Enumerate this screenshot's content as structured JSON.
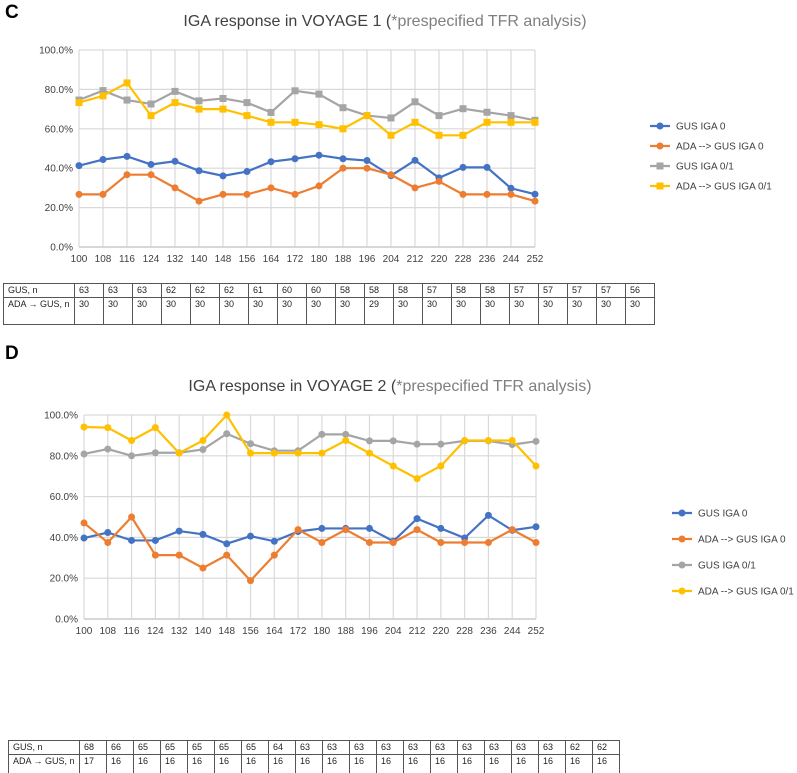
{
  "chart_data": [
    {
      "panel": "C",
      "type": "line",
      "title_main": "IGA response in VOYAGE 1 (",
      "title_note": "*prespecified TFR analysis)",
      "x": [
        100,
        108,
        116,
        124,
        132,
        140,
        148,
        156,
        164,
        172,
        180,
        188,
        196,
        204,
        212,
        220,
        228,
        236,
        244,
        252
      ],
      "ylim": [
        0,
        100
      ],
      "yticks": [
        "0.0%",
        "20.0%",
        "40.0%",
        "60.0%",
        "80.0%",
        "100.0%"
      ],
      "grid": true,
      "legend": "right",
      "series": [
        {
          "name": "GUS IGA 0",
          "color": "#4472C4",
          "marker": "circle",
          "values": [
            41.3,
            44.4,
            46.0,
            41.9,
            43.5,
            38.7,
            36.1,
            38.3,
            43.3,
            44.8,
            46.6,
            44.8,
            43.9,
            36.2,
            44.0,
            35.1,
            40.4,
            40.4,
            29.8,
            26.8
          ]
        },
        {
          "name": "ADA --> GUS IGA 0",
          "color": "#ED7D31",
          "marker": "circle",
          "values": [
            26.7,
            26.7,
            36.7,
            36.7,
            30.0,
            23.3,
            26.7,
            26.7,
            30.0,
            26.7,
            31.0,
            40.0,
            40.0,
            36.7,
            30.0,
            33.3,
            26.7,
            26.7,
            26.7,
            23.3
          ]
        },
        {
          "name": "GUS IGA 0/1",
          "color": "#A5A5A5",
          "marker": "square",
          "values": [
            74.6,
            79.4,
            74.6,
            72.6,
            79.0,
            74.2,
            75.4,
            73.3,
            68.3,
            79.3,
            77.6,
            70.7,
            66.7,
            65.5,
            73.7,
            66.7,
            70.2,
            68.4,
            66.7,
            64.3
          ]
        },
        {
          "name": "ADA --> GUS IGA 0/1",
          "color": "#FFC000",
          "marker": "square",
          "values": [
            73.3,
            76.7,
            83.3,
            66.7,
            73.3,
            70.0,
            70.0,
            66.7,
            63.3,
            63.3,
            62.1,
            60.0,
            66.7,
            56.7,
            63.3,
            56.7,
            56.7,
            63.3,
            63.3,
            63.3
          ]
        }
      ],
      "table": {
        "row1_label": "GUS, n",
        "row1": [
          63,
          63,
          63,
          62,
          62,
          62,
          61,
          60,
          60,
          58,
          58,
          58,
          57,
          58,
          58,
          57,
          57,
          57,
          57,
          56
        ],
        "row2_label": "ADA → GUS, n",
        "row2": [
          30,
          30,
          30,
          30,
          30,
          30,
          30,
          30,
          30,
          30,
          29,
          30,
          30,
          30,
          30,
          30,
          30,
          30,
          30,
          30
        ]
      }
    },
    {
      "panel": "D",
      "type": "line",
      "title_main": "IGA response in VOYAGE 2 (",
      "title_note": "*prespecified TFR analysis)",
      "x": [
        100,
        108,
        116,
        124,
        132,
        140,
        148,
        156,
        164,
        172,
        180,
        188,
        196,
        204,
        212,
        220,
        228,
        236,
        244,
        252
      ],
      "ylim": [
        0,
        100
      ],
      "yticks": [
        "0.0%",
        "20.0%",
        "40.0%",
        "60.0%",
        "80.0%",
        "100.0%"
      ],
      "grid": true,
      "legend": "right",
      "series": [
        {
          "name": "GUS IGA 0",
          "color": "#4472C4",
          "marker": "circle",
          "values": [
            39.7,
            42.4,
            38.5,
            38.5,
            43.1,
            41.5,
            36.9,
            40.6,
            38.1,
            42.9,
            44.4,
            44.4,
            44.4,
            38.1,
            49.2,
            44.4,
            39.7,
            50.8,
            43.5,
            45.2
          ]
        },
        {
          "name": "ADA --> GUS IGA 0",
          "color": "#ED7D31",
          "marker": "circle",
          "values": [
            47.1,
            37.5,
            50.0,
            31.3,
            31.3,
            25.0,
            31.3,
            18.8,
            31.3,
            43.8,
            37.5,
            43.8,
            37.5,
            37.5,
            43.8,
            37.5,
            37.5,
            37.5,
            43.8,
            37.5
          ]
        },
        {
          "name": "GUS IGA 0/1",
          "color": "#A5A5A5",
          "marker": "circle",
          "values": [
            80.9,
            83.3,
            80.0,
            81.5,
            81.5,
            83.1,
            90.8,
            85.9,
            82.5,
            82.5,
            90.5,
            90.5,
            87.3,
            87.3,
            85.7,
            85.7,
            87.3,
            87.3,
            85.5,
            87.1
          ]
        },
        {
          "name": "ADA --> GUS IGA 0/1",
          "color": "#FFC000",
          "marker": "circle",
          "values": [
            94.1,
            93.8,
            87.5,
            93.8,
            81.3,
            87.5,
            100.0,
            81.3,
            81.3,
            81.3,
            81.3,
            87.5,
            81.3,
            75.0,
            68.8,
            75.0,
            87.5,
            87.5,
            87.5,
            75.0
          ]
        }
      ],
      "table": {
        "row1_label": "GUS, n",
        "row1": [
          68,
          66,
          65,
          65,
          65,
          65,
          65,
          64,
          63,
          63,
          63,
          63,
          63,
          63,
          63,
          63,
          63,
          63,
          62,
          62
        ],
        "row2_label": "ADA → GUS, n",
        "row2": [
          17,
          16,
          16,
          16,
          16,
          16,
          16,
          16,
          16,
          16,
          16,
          16,
          16,
          16,
          16,
          16,
          16,
          16,
          16,
          16
        ]
      }
    }
  ]
}
